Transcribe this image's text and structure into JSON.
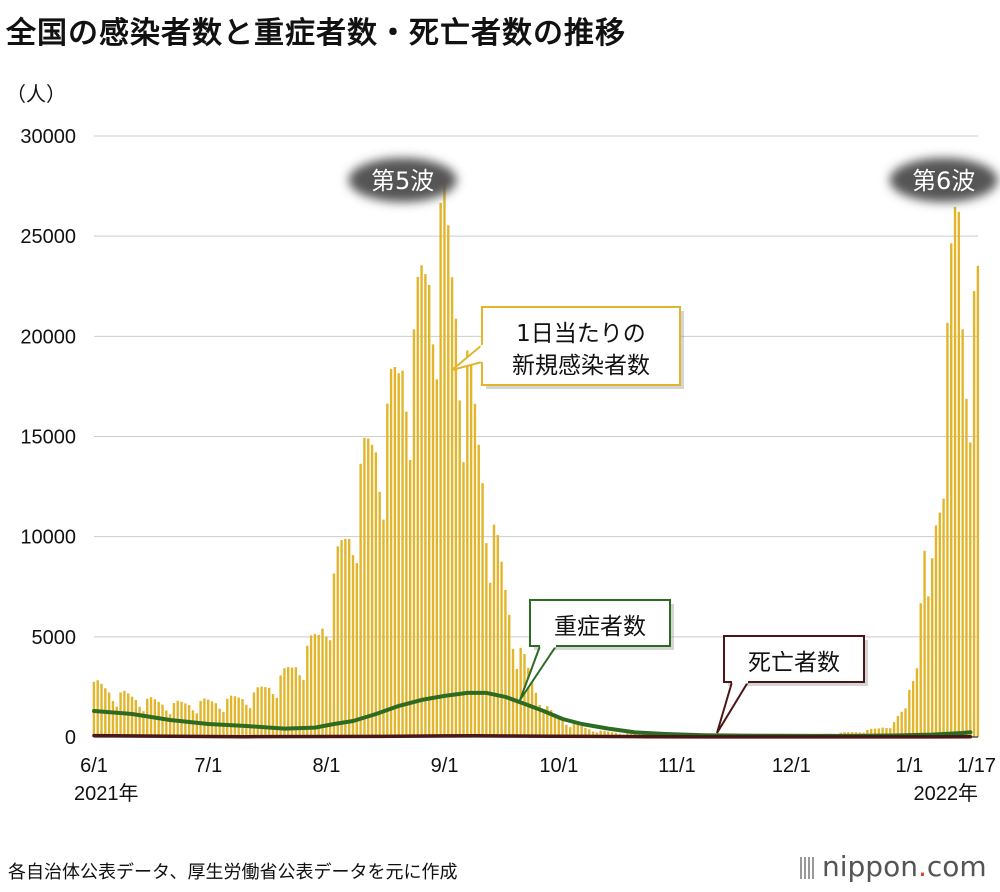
{
  "header": {
    "title": "全国の感染者数と重症者数・死亡者数の推移",
    "unit": "（人）"
  },
  "footer": {
    "source": "各自治体公表データ、厚生労働省公表データを元に作成",
    "logo_main": "nippon",
    "logo_dot": ".",
    "logo_tail": "com"
  },
  "colors": {
    "bars": "#e2b52a",
    "severe": "#2e6b22",
    "deaths": "#4a1616",
    "grid": "#cccccc"
  },
  "chart_data": {
    "type": "bar",
    "title": "全国の感染者数と重症者数・死亡者数の推移",
    "ylabel": "（人）",
    "ylim": [
      0,
      30000
    ],
    "yticks": [
      {
        "value": 0,
        "label": "0"
      },
      {
        "value": 5000,
        "label": "5000"
      },
      {
        "value": 10000,
        "label": "10000"
      },
      {
        "value": 15000,
        "label": "15000"
      },
      {
        "value": 20000,
        "label": "20000"
      },
      {
        "value": 25000,
        "label": "25000"
      },
      {
        "value": 30000,
        "label": "30000"
      }
    ],
    "xlim_days": [
      0,
      232
    ],
    "xticks": [
      {
        "day": 0,
        "label": "6/1",
        "sub": "2021年"
      },
      {
        "day": 30,
        "label": "7/1",
        "sub": ""
      },
      {
        "day": 61,
        "label": "8/1",
        "sub": ""
      },
      {
        "day": 92,
        "label": "9/1",
        "sub": ""
      },
      {
        "day": 122,
        "label": "10/1",
        "sub": ""
      },
      {
        "day": 153,
        "label": "11/1",
        "sub": ""
      },
      {
        "day": 183,
        "label": "12/1",
        "sub": ""
      },
      {
        "day": 214,
        "label": "1/1",
        "sub": ""
      },
      {
        "day": 230,
        "label": "1/17",
        "sub": "2022年"
      }
    ],
    "annotations": [
      {
        "text": "第5波",
        "day": 81,
        "value": 27800,
        "kind": "wave"
      },
      {
        "text": "第6波",
        "day": 223,
        "value": 27800,
        "kind": "wave"
      }
    ],
    "series": [
      {
        "name": "1日当たりの新規感染者数",
        "kind": "bar",
        "label_lines": [
          "1日当たりの",
          "新規感染者数"
        ],
        "points": [
          [
            0,
            2600
          ],
          [
            7,
            2100
          ],
          [
            14,
            1800
          ],
          [
            21,
            1600
          ],
          [
            28,
            1700
          ],
          [
            35,
            1800
          ],
          [
            42,
            2100
          ],
          [
            49,
            2900
          ],
          [
            52,
            3400
          ],
          [
            56,
            4300
          ],
          [
            59,
            5000
          ],
          [
            62,
            6900
          ],
          [
            64,
            8500
          ],
          [
            67,
            10300
          ],
          [
            69,
            12400
          ],
          [
            72,
            13800
          ],
          [
            75,
            15300
          ],
          [
            77,
            15700
          ],
          [
            80,
            17800
          ],
          [
            82,
            20300
          ],
          [
            84,
            19200
          ],
          [
            86,
            21800
          ],
          [
            88,
            23500
          ],
          [
            90,
            25500
          ],
          [
            92,
            24800
          ],
          [
            94,
            22500
          ],
          [
            96,
            21000
          ],
          [
            98,
            18200
          ],
          [
            100,
            15400
          ],
          [
            102,
            13200
          ],
          [
            104,
            11000
          ],
          [
            106,
            9000
          ],
          [
            108,
            7200
          ],
          [
            110,
            5500
          ],
          [
            112,
            4200
          ],
          [
            114,
            3200
          ],
          [
            116,
            2300
          ],
          [
            118,
            1700
          ],
          [
            120,
            1200
          ],
          [
            122,
            900
          ],
          [
            125,
            700
          ],
          [
            128,
            500
          ],
          [
            131,
            350
          ],
          [
            135,
            250
          ],
          [
            140,
            170
          ],
          [
            145,
            140
          ],
          [
            150,
            120
          ],
          [
            155,
            100
          ],
          [
            160,
            90
          ],
          [
            170,
            80
          ],
          [
            180,
            100
          ],
          [
            190,
            130
          ],
          [
            200,
            250
          ],
          [
            206,
            420
          ],
          [
            210,
            700
          ],
          [
            213,
            1400
          ],
          [
            215,
            3500
          ],
          [
            217,
            6300
          ],
          [
            218,
            8300
          ],
          [
            219,
            6500
          ],
          [
            221,
            11000
          ],
          [
            223,
            17000
          ],
          [
            224,
            19500
          ],
          [
            226,
            24500
          ],
          [
            227,
            25700
          ],
          [
            228,
            21200
          ],
          [
            230,
            21000
          ]
        ]
      },
      {
        "name": "重症者数",
        "kind": "line",
        "color": "#2e6b22",
        "label_lines": [
          "重症者数"
        ],
        "points": [
          [
            0,
            1300
          ],
          [
            10,
            1150
          ],
          [
            20,
            850
          ],
          [
            30,
            650
          ],
          [
            40,
            550
          ],
          [
            50,
            420
          ],
          [
            58,
            470
          ],
          [
            63,
            650
          ],
          [
            68,
            800
          ],
          [
            74,
            1150
          ],
          [
            80,
            1550
          ],
          [
            86,
            1850
          ],
          [
            92,
            2050
          ],
          [
            98,
            2200
          ],
          [
            103,
            2200
          ],
          [
            108,
            2000
          ],
          [
            113,
            1650
          ],
          [
            118,
            1300
          ],
          [
            123,
            900
          ],
          [
            128,
            650
          ],
          [
            135,
            420
          ],
          [
            142,
            230
          ],
          [
            150,
            150
          ],
          [
            160,
            90
          ],
          [
            170,
            70
          ],
          [
            180,
            60
          ],
          [
            190,
            55
          ],
          [
            200,
            55
          ],
          [
            210,
            75
          ],
          [
            220,
            120
          ],
          [
            228,
            200
          ],
          [
            230,
            240
          ]
        ]
      },
      {
        "name": "死亡者数",
        "kind": "line",
        "color": "#4a1616",
        "label_lines": [
          "死亡者数"
        ],
        "points": [
          [
            0,
            70
          ],
          [
            20,
            35
          ],
          [
            40,
            15
          ],
          [
            60,
            25
          ],
          [
            80,
            35
          ],
          [
            92,
            55
          ],
          [
            100,
            60
          ],
          [
            110,
            50
          ],
          [
            120,
            40
          ],
          [
            130,
            30
          ],
          [
            145,
            15
          ],
          [
            160,
            5
          ],
          [
            180,
            3
          ],
          [
            200,
            3
          ],
          [
            220,
            5
          ],
          [
            230,
            10
          ]
        ]
      }
    ]
  }
}
